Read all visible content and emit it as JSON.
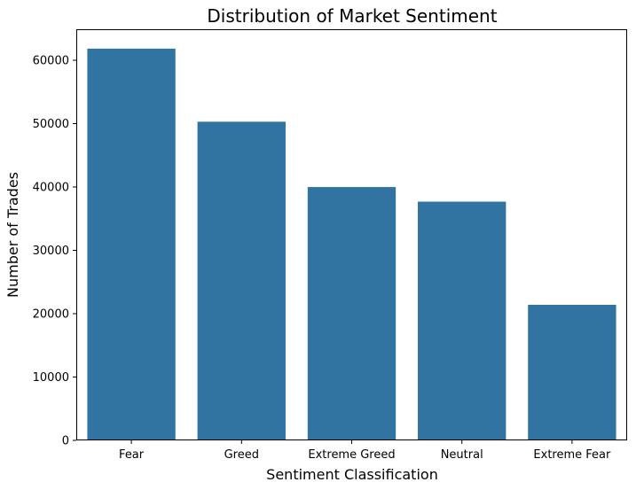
{
  "chart_data": {
    "type": "bar",
    "title": "Distribution of Market Sentiment",
    "xlabel": "Sentiment Classification",
    "ylabel": "Number of Trades",
    "categories": [
      "Fear",
      "Greed",
      "Extreme Greed",
      "Neutral",
      "Extreme Fear"
    ],
    "values": [
      61837,
      50303,
      39992,
      37686,
      21400
    ],
    "ylim": [
      0,
      64900
    ],
    "yticks": [
      0,
      10000,
      20000,
      30000,
      40000,
      50000,
      60000
    ],
    "bar_color": "#3274a1",
    "grid": false,
    "legend": "none"
  }
}
